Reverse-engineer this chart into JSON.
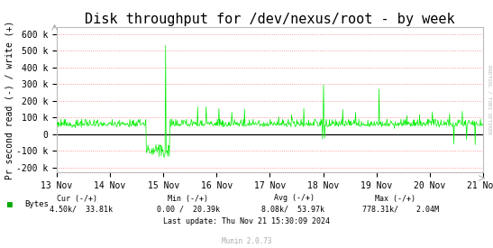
{
  "title": "Disk throughput for /dev/nexus/root - by week",
  "ylabel": "Pr second read (-) / write (+)",
  "xlabel_ticks": [
    "13 Nov",
    "14 Nov",
    "15 Nov",
    "16 Nov",
    "17 Nov",
    "18 Nov",
    "19 Nov",
    "20 Nov",
    "21 Nov"
  ],
  "ylim": [
    -230000,
    640000
  ],
  "yticks": [
    -200000,
    -100000,
    0,
    100000,
    200000,
    300000,
    400000,
    500000,
    600000
  ],
  "ytick_labels": [
    "-200 k",
    "-100 k",
    "0",
    "100 k",
    "200 k",
    "300 k",
    "400 k",
    "500 k",
    "600 k"
  ],
  "line_color": "#00ee00",
  "zero_line_color": "#000000",
  "bg_color": "#ffffff",
  "plot_bg_color": "#ffffff",
  "grid_color": "#ff8080",
  "legend_label": "Bytes",
  "legend_color": "#00aa00",
  "last_update": "Last update: Thu Nov 21 15:30:09 2024",
  "munin_text": "Munin 2.0.73",
  "rrdtool_text": "RRDTOOL / TOBI OETIKER",
  "title_fontsize": 11,
  "axis_label_fontsize": 7,
  "tick_fontsize": 7,
  "stats_fontsize": 6,
  "n_points": 800,
  "seed": 99
}
